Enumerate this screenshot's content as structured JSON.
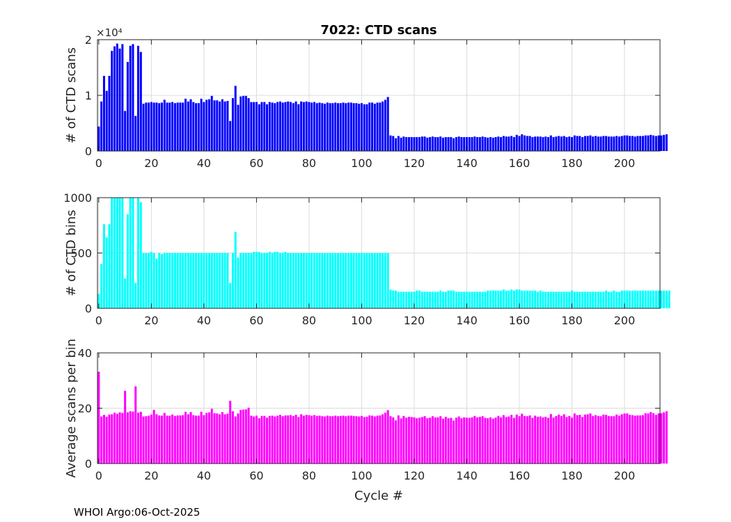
{
  "figure": {
    "title": "7022: CTD scans",
    "footer": "WHOI Argo:06-Oct-2025"
  },
  "chart_data": [
    {
      "type": "bar",
      "ylabel": "# of CTD scans",
      "xlabel": "",
      "exponent_label": "×10⁴",
      "ylim": [
        0,
        20000
      ],
      "yticks": [
        0,
        10000,
        20000
      ],
      "ytick_labels": [
        "0",
        "1",
        "2"
      ],
      "xlim": [
        -0.5,
        213.5
      ],
      "xticks": [
        0,
        20,
        40,
        60,
        80,
        100,
        120,
        140,
        160,
        180,
        200
      ],
      "grid": true,
      "color": "#0000ff",
      "x_start": 0,
      "values": [
        4400,
        8900,
        13500,
        10800,
        13500,
        18000,
        18800,
        19300,
        18400,
        19200,
        7200,
        16000,
        18900,
        19200,
        6300,
        18900,
        17800,
        8500,
        8700,
        8700,
        8800,
        8700,
        8700,
        8600,
        8700,
        9200,
        8700,
        8700,
        8800,
        8600,
        8700,
        8700,
        8700,
        9400,
        8900,
        9300,
        8800,
        8600,
        8600,
        9400,
        8800,
        9200,
        9300,
        9900,
        9100,
        9100,
        8900,
        9300,
        8900,
        9000,
        5400,
        9500,
        11700,
        8300,
        9800,
        9900,
        9900,
        9500,
        8800,
        8800,
        8800,
        8400,
        8800,
        8800,
        8400,
        8800,
        8700,
        8600,
        8800,
        8900,
        8700,
        8800,
        8900,
        8800,
        8600,
        8900,
        8400,
        8900,
        8800,
        8900,
        8800,
        8700,
        8800,
        8600,
        8700,
        8600,
        8500,
        8700,
        8600,
        8600,
        8700,
        8600,
        8600,
        8700,
        8600,
        8700,
        8700,
        8600,
        8600,
        8500,
        8600,
        8400,
        8400,
        8700,
        8700,
        8500,
        8700,
        8700,
        8900,
        9200,
        9700,
        2800,
        2700,
        2300,
        2700,
        2400,
        2600,
        2500,
        2500,
        2500,
        2500,
        2500,
        2500,
        2600,
        2600,
        2400,
        2500,
        2600,
        2500,
        2500,
        2600,
        2400,
        2500,
        2500,
        2500,
        2300,
        2500,
        2600,
        2500,
        2500,
        2500,
        2500,
        2500,
        2600,
        2500,
        2500,
        2600,
        2500,
        2400,
        2500,
        2400,
        2500,
        2600,
        2500,
        2700,
        2600,
        2600,
        2700,
        2500,
        2900,
        2700,
        3000,
        2800,
        2700,
        2700,
        2500,
        2600,
        2600,
        2600,
        2500,
        2600,
        2500,
        2800,
        2500,
        2600,
        2700,
        2600,
        2700,
        2500,
        2600,
        2500,
        2800,
        2700,
        2700,
        2500,
        2700,
        2700,
        2800,
        2600,
        2700,
        2600,
        2600,
        2700,
        2700,
        2600,
        2600,
        2600,
        2700,
        2600,
        2700,
        2800,
        2800,
        2700,
        2700,
        2600,
        2700,
        2700,
        2700,
        2800,
        2800,
        2900,
        2800,
        2700,
        2800,
        2800,
        2900,
        3000
      ]
    },
    {
      "type": "bar",
      "ylabel": "# of CTD bins",
      "xlabel": "",
      "ylim": [
        0,
        1000
      ],
      "yticks": [
        0,
        500,
        1000
      ],
      "ytick_labels": [
        "0",
        "500",
        "1000"
      ],
      "xlim": [
        -0.5,
        213.5
      ],
      "xticks": [
        0,
        20,
        40,
        60,
        80,
        100,
        120,
        140,
        160,
        180,
        200
      ],
      "grid": true,
      "color": "#00ffff",
      "x_start": 0,
      "values": [
        130,
        400,
        760,
        640,
        760,
        1000,
        1000,
        1000,
        1000,
        1000,
        270,
        850,
        1000,
        1000,
        230,
        1000,
        960,
        500,
        500,
        500,
        510,
        500,
        450,
        500,
        490,
        500,
        500,
        500,
        500,
        500,
        500,
        500,
        500,
        500,
        500,
        500,
        500,
        500,
        500,
        500,
        500,
        500,
        500,
        500,
        500,
        500,
        500,
        500,
        500,
        500,
        230,
        500,
        690,
        460,
        500,
        500,
        500,
        500,
        500,
        510,
        510,
        510,
        500,
        500,
        500,
        510,
        500,
        510,
        510,
        500,
        500,
        510,
        500,
        500,
        500,
        500,
        500,
        500,
        500,
        500,
        500,
        500,
        500,
        500,
        500,
        500,
        500,
        500,
        500,
        500,
        500,
        500,
        500,
        500,
        500,
        500,
        500,
        500,
        500,
        500,
        500,
        500,
        500,
        500,
        500,
        500,
        500,
        500,
        500,
        500,
        500,
        170,
        160,
        160,
        150,
        150,
        150,
        150,
        150,
        150,
        150,
        160,
        160,
        150,
        150,
        150,
        150,
        150,
        150,
        150,
        160,
        150,
        150,
        160,
        160,
        160,
        150,
        150,
        150,
        150,
        150,
        150,
        150,
        150,
        150,
        150,
        150,
        150,
        160,
        160,
        160,
        160,
        160,
        160,
        170,
        160,
        160,
        170,
        160,
        170,
        170,
        160,
        160,
        160,
        160,
        160,
        160,
        150,
        160,
        150,
        150,
        150,
        150,
        150,
        150,
        150,
        150,
        150,
        150,
        150,
        160,
        150,
        150,
        150,
        150,
        150,
        150,
        150,
        150,
        150,
        150,
        150,
        150,
        160,
        150,
        150,
        160,
        150,
        150,
        160,
        160,
        160,
        160,
        160,
        160,
        160,
        160,
        160,
        160,
        160,
        160,
        160,
        160,
        160,
        160,
        160,
        160,
        160
      ]
    },
    {
      "type": "bar",
      "ylabel": "Average scans per bin",
      "xlabel": "Cycle #",
      "ylim": [
        0,
        40
      ],
      "yticks": [
        0,
        20,
        40
      ],
      "ytick_labels": [
        "0",
        "20",
        "40"
      ],
      "xlim": [
        -0.5,
        213.5
      ],
      "xticks": [
        0,
        20,
        40,
        60,
        80,
        100,
        120,
        140,
        160,
        180,
        200
      ],
      "grid": true,
      "color": "#ff00ff",
      "x_start": 0,
      "values": [
        33.2,
        17.0,
        17.6,
        16.9,
        17.7,
        17.8,
        18.4,
        18.0,
        18.5,
        18.3,
        26.3,
        18.5,
        18.9,
        18.8,
        27.9,
        18.4,
        18.7,
        17.0,
        17.1,
        17.3,
        17.7,
        19.4,
        17.8,
        17.4,
        17.3,
        18.3,
        17.3,
        17.3,
        17.7,
        17.2,
        17.4,
        17.4,
        17.5,
        18.7,
        17.8,
        18.6,
        17.5,
        17.3,
        17.3,
        18.7,
        17.5,
        18.3,
        18.5,
        19.8,
        18.2,
        18.1,
        17.8,
        18.6,
        17.8,
        18.0,
        22.7,
        18.9,
        17.0,
        18.1,
        19.4,
        19.5,
        19.6,
        20.2,
        17.3,
        17.0,
        17.3,
        16.4,
        17.2,
        17.2,
        16.6,
        17.2,
        17.3,
        17.0,
        17.3,
        17.6,
        17.1,
        17.4,
        17.4,
        17.5,
        17.2,
        17.6,
        16.8,
        17.8,
        17.3,
        17.6,
        17.5,
        17.3,
        17.5,
        17.2,
        17.3,
        17.1,
        17.0,
        17.3,
        17.1,
        17.1,
        17.3,
        17.1,
        17.2,
        17.3,
        17.1,
        17.3,
        17.3,
        17.2,
        17.1,
        17.0,
        17.2,
        16.8,
        16.9,
        17.4,
        17.3,
        17.0,
        17.3,
        17.4,
        17.8,
        18.4,
        19.3,
        17.1,
        16.7,
        15.6,
        17.4,
        16.3,
        17.2,
        16.6,
        16.9,
        16.8,
        16.7,
        16.4,
        16.6,
        16.8,
        17.1,
        16.4,
        16.6,
        17.1,
        16.7,
        16.7,
        17.1,
        16.2,
        16.9,
        16.4,
        16.5,
        15.5,
        16.6,
        17.0,
        16.4,
        16.7,
        16.6,
        16.5,
        16.7,
        17.2,
        16.7,
        16.9,
        17.1,
        16.5,
        16.4,
        16.7,
        16.2,
        16.6,
        17.2,
        16.7,
        17.5,
        16.8,
        17.0,
        17.6,
        16.5,
        17.7,
        17.1,
        18.0,
        17.2,
        17.1,
        17.4,
        16.5,
        17.3,
        16.9,
        17.0,
        16.7,
        16.9,
        16.5,
        17.9,
        16.6,
        17.2,
        17.7,
        17.2,
        17.8,
        16.8,
        17.2,
        16.6,
        18.1,
        17.5,
        17.6,
        16.8,
        17.7,
        17.8,
        18.1,
        17.2,
        17.5,
        17.2,
        17.1,
        17.7,
        17.6,
        17.2,
        17.1,
        17.1,
        17.7,
        17.3,
        17.8,
        18.1,
        18.1,
        17.6,
        17.5,
        17.3,
        17.4,
        17.4,
        17.5,
        18.2,
        18.1,
        18.6,
        18.2,
        17.6,
        18.1,
        18.2,
        18.5,
        18.9
      ]
    }
  ]
}
